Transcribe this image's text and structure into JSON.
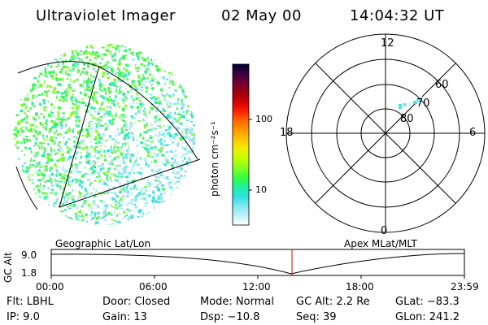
{
  "header": {
    "instrument": "Ultraviolet Imager",
    "date": "02 May 00",
    "time": "14:04:32 UT"
  },
  "colorbar": {
    "label": "photon cm⁻²s⁻¹",
    "ticks": [
      "100",
      "10"
    ],
    "colors": [
      "#000033",
      "#3a0040",
      "#700030",
      "#a00010",
      "#d00000",
      "#ff2000",
      "#ff6a00",
      "#ff9a00",
      "#ffc800",
      "#f0f000",
      "#c0ff00",
      "#80ff20",
      "#30ff40",
      "#20f0a0",
      "#30e0e0",
      "#80e8f0",
      "#c0f0f8",
      "#ffffff"
    ]
  },
  "polar": {
    "mlt_labels": [
      "12",
      "18",
      "6",
      "0"
    ],
    "lat_labels": [
      "60",
      "70",
      "80"
    ]
  },
  "orbit": {
    "ylabel": "GC Alt",
    "yticks": [
      "9.0",
      "1.8"
    ],
    "left_label": "Geographic Lat/Lon",
    "right_label": "Apex MLat/MLT",
    "xticks": [
      "00:00",
      "06:00",
      "12:00",
      "18:00",
      "23:59"
    ],
    "marker_color": "#cc0000"
  },
  "info": {
    "filter": "Flt: LBHL",
    "ip": "IP:  9.0",
    "door": "Door: Closed",
    "gain": "Gain: 13",
    "mode": "Mode: Normal",
    "dsp": "Dsp:  −10.8",
    "gc_alt": "GC Alt: 2.2 Re",
    "seq": "Seq: 39",
    "glat": "GLat: −83.3",
    "glon": "GLon: 241.2"
  }
}
